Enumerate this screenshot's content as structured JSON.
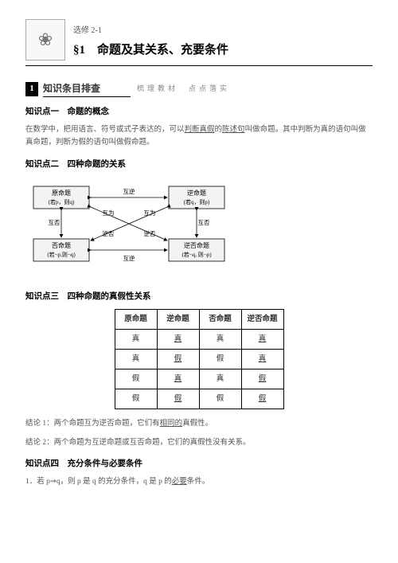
{
  "header": {
    "chapter": "选修 2-1",
    "title": "§1　命题及其关系、充要条件"
  },
  "bar": {
    "num": "1",
    "title": "知识条目排查",
    "sub": "梳理教材　点点落实"
  },
  "p1": {
    "title": "知识点一　命题的概念",
    "text1": "在数学中，把用语言、符号或式子表达的，可以",
    "u1": "判断真假",
    "text2": "的",
    "u2": "陈述句",
    "text3": "叫做命题。其中判断为真的语句叫做真命题，判断为假的语句叫做假命题。"
  },
  "p2": {
    "title": "知识点二　四种命题的关系"
  },
  "diagram": {
    "boxes": {
      "tl": {
        "l1": "原命题",
        "l2": "(若p，则q)"
      },
      "tr": {
        "l1": "逆命题",
        "l2": "(若q，则p)"
      },
      "bl": {
        "l1": "否命题",
        "l2": "(若¬p,则¬q)"
      },
      "br": {
        "l1": "逆否命题",
        "l2": "(若¬q, 则¬p)"
      }
    },
    "labels": {
      "top": "互逆",
      "bottom": "互逆",
      "left": "互否",
      "right": "互否",
      "diag1": "逆否",
      "diag2": "逆否",
      "wei1": "互为",
      "wei2": "互为"
    }
  },
  "p3": {
    "title": "知识点三　四种命题的真假性关系"
  },
  "table": {
    "h1": "原命题",
    "h2": "逆命题",
    "h3": "否命题",
    "h4": "逆否命题",
    "rows": [
      [
        "真",
        "真",
        "真",
        "真"
      ],
      [
        "真",
        "假",
        "假",
        "真"
      ],
      [
        "假",
        "真",
        "真",
        "假"
      ],
      [
        "假",
        "假",
        "假",
        "假"
      ]
    ],
    "underlineCols": [
      1,
      3
    ]
  },
  "conc1": {
    "a": "结论 1：两个命题互为逆否命题，它们有",
    "u": "相同的",
    "b": "真假性。"
  },
  "conc2": "结论 2：两个命题为互逆命题或互否命题，它们的真假性没有关系。",
  "p4": {
    "title": "知识点四　充分条件与必要条件",
    "text1": "1．若 p⇒q，则 p 是 q 的充分条件，q 是 p 的",
    "u": "必要",
    "text2": "条件。"
  }
}
